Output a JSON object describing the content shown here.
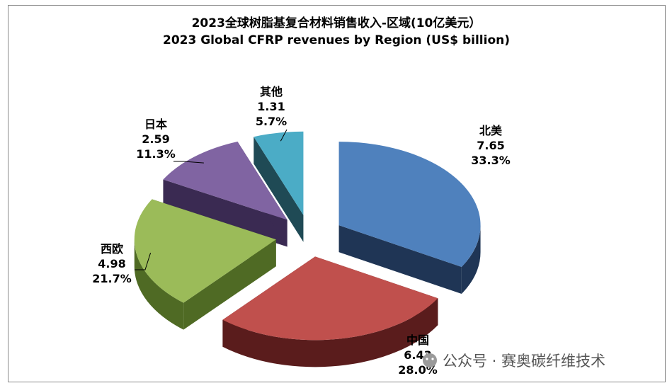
{
  "chart_data": {
    "type": "pie",
    "title": "2023全球树脂基复合材料销售收入-区域(10亿美元）",
    "subtitle": "2023 Global CFRP revenues by Region (US$ billion)",
    "slices": [
      {
        "name": "北美",
        "value": 7.65,
        "percent": "33.3%",
        "color": "#4f81bd",
        "side": "#1f3555"
      },
      {
        "name": "中国",
        "value": 6.43,
        "percent": "28.0%",
        "color": "#c0504d",
        "side": "#5a1c1c"
      },
      {
        "name": "西欧",
        "value": 4.98,
        "percent": "21.7%",
        "color": "#9bbb59",
        "side": "#4f6a24"
      },
      {
        "name": "日本",
        "value": 2.59,
        "percent": "11.3%",
        "color": "#8064a2",
        "side": "#3a2a52"
      },
      {
        "name": "其他",
        "value": 1.31,
        "percent": "5.7%",
        "color": "#4bacc6",
        "side": "#1f4a55"
      }
    ]
  },
  "watermark": "公众号 · 赛奥碳纤维技术"
}
